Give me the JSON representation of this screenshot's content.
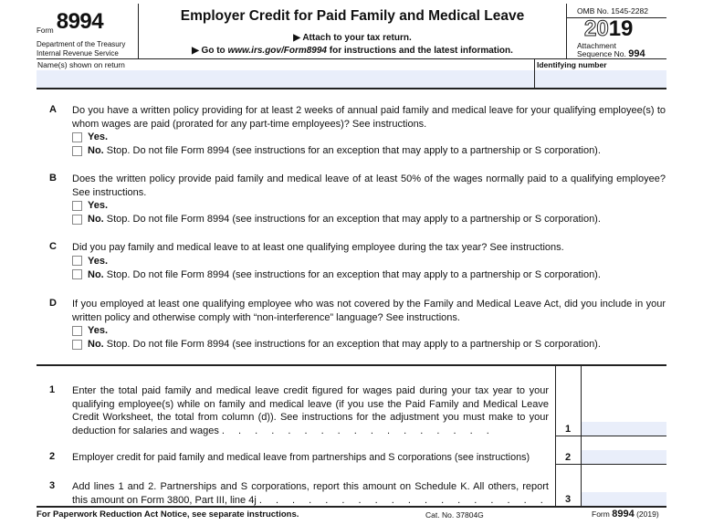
{
  "header": {
    "form_label": "Form",
    "form_number": "8994",
    "dept_line1": "Department of the Treasury",
    "dept_line2": "Internal Revenue Service",
    "title": "Employer Credit for Paid Family and Medical Leave",
    "attach": "▶ Attach to your tax return.",
    "goto_prefix": "▶ Go to ",
    "goto_url": "www.irs.gov/Form8994",
    "goto_suffix": " for instructions and the latest information.",
    "omb": "OMB No. 1545-2282",
    "year_outline": "20",
    "year_bold": "19",
    "attachment": "Attachment",
    "sequence_label": "Sequence No.",
    "sequence_no": "994"
  },
  "fields": {
    "name_label": "Name(s) shown on return",
    "name_value": "",
    "id_label": "Identifying number",
    "id_value": ""
  },
  "questions": [
    {
      "letter": "A",
      "text": "Do you have a written policy providing for at least 2 weeks of annual paid family and medical leave for your qualifying employee(s) to whom wages are paid (prorated for any part-time employees)? See instructions.",
      "yes": "Yes.",
      "no_bold": "No.",
      "no_text": " Stop. Do not file Form 8994 (see instructions for an exception that may apply to a partnership or S corporation)."
    },
    {
      "letter": "B",
      "text": "Does the written policy provide paid family and medical leave of at least 50% of the wages normally paid to a qualifying employee? See instructions.",
      "yes": "Yes.",
      "no_bold": "No.",
      "no_text": " Stop. Do not file Form 8994 (see instructions for an exception that may apply to a partnership or S corporation)."
    },
    {
      "letter": "C",
      "text": "Did you pay family and medical leave to at least one qualifying employee during the tax year? See instructions.",
      "yes": "Yes.",
      "no_bold": "No.",
      "no_text": " Stop. Do not file Form 8994 (see instructions for an exception that may apply to a partnership or S corporation)."
    },
    {
      "letter": "D",
      "text": "If you employed at least one qualifying employee who was not covered by the Family and Medical Leave Act, did you include in your written policy and otherwise comply with “non-interference” language? See instructions.",
      "yes": "Yes.",
      "no_bold": "No.",
      "no_text": " Stop. Do not file Form 8994 (see instructions for an exception that may apply to a partnership or S corporation)."
    }
  ],
  "lines": [
    {
      "num": "1",
      "text": "Enter the total paid family and medical leave credit figured for wages paid during your tax year to your qualifying employee(s) while on family and medical leave (if you use the Paid Family and Medical Leave Credit Worksheet, the total from column (d)). See instructions for the adjustment you must make to your deduction for salaries and wages",
      "dots": ". . . . . . . . . . . . . . . . .",
      "value": ""
    },
    {
      "num": "2",
      "text": "Employer credit for paid family and medical leave from partnerships and S corporations (see instructions)",
      "dots": "",
      "value": ""
    },
    {
      "num": "3",
      "text": "Add lines 1 and 2. Partnerships and S corporations, report this amount on Schedule K. All others, report this amount on Form 3800, Part III, line 4j",
      "dots": ". . . . . . . . . . . . . . . . . .",
      "value": ""
    }
  ],
  "footer": {
    "notice": "For Paperwork Reduction Act Notice, see separate instructions.",
    "cat": "Cat. No. 37804G",
    "form_label": "Form",
    "form_number": "8994",
    "year": "(2019)"
  }
}
